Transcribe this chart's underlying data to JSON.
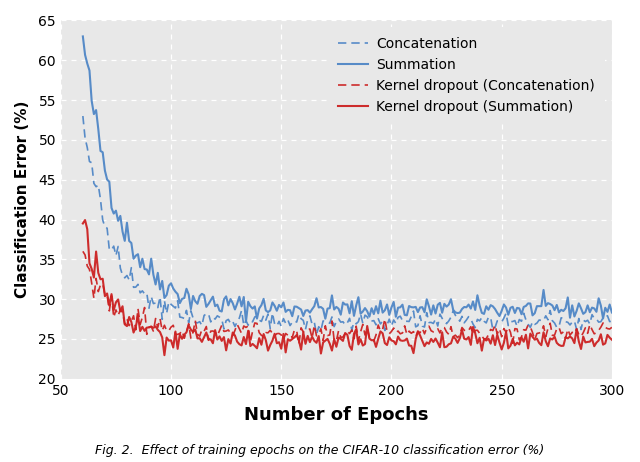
{
  "title": "",
  "xlabel": "Number of Epochs",
  "ylabel": "Classification Error (%)",
  "xlim": [
    50,
    300
  ],
  "ylim": [
    20,
    65
  ],
  "yticks": [
    20,
    25,
    30,
    35,
    40,
    45,
    50,
    55,
    60,
    65
  ],
  "xticks": [
    50,
    100,
    150,
    200,
    250,
    300
  ],
  "legend_labels": [
    "Concatenation",
    "Summation",
    "Kernel dropout (Concatenation)",
    "Kernel dropout (Summation)"
  ],
  "color_blue": "#4f86c6",
  "color_red": "#cc2222",
  "background_color": "#e8e8e8",
  "legend_bg": "#e8e8e8",
  "grid_color": "#ffffff",
  "caption": "Fig. 2.  Effect of training epochs on the CIFAR-10 classification error (%)",
  "xlabel_fontsize": 13,
  "ylabel_fontsize": 11,
  "tick_fontsize": 10,
  "legend_fontsize": 10,
  "caption_fontsize": 9
}
